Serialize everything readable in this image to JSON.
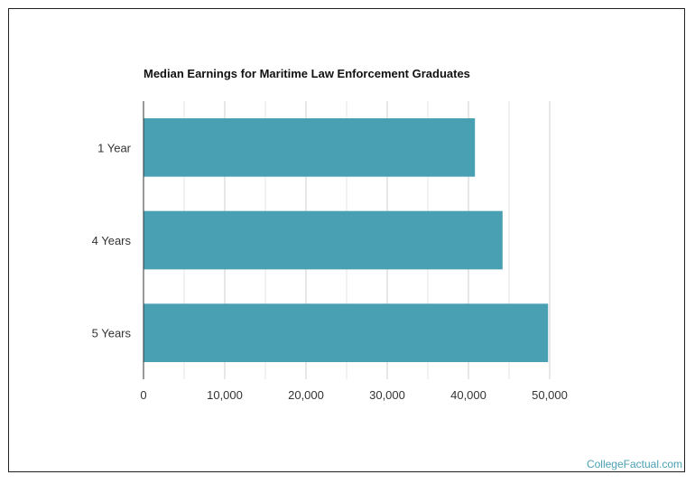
{
  "chart_data": {
    "type": "bar",
    "orientation": "horizontal",
    "title": "Median Earnings for Maritime Law Enforcement Graduates",
    "categories": [
      "1 Year",
      "4 Years",
      "5 Years"
    ],
    "values": [
      40800,
      44200,
      49800
    ],
    "x_ticks": [
      "0",
      "10,000",
      "20,000",
      "30,000",
      "40,000",
      "50,000"
    ],
    "xlim": [
      0,
      50000
    ],
    "grid": true,
    "bar_color": "#4aa0b3",
    "grid_color": "#d9d9d9"
  },
  "footer": {
    "credit": "CollegeFactual.com"
  }
}
